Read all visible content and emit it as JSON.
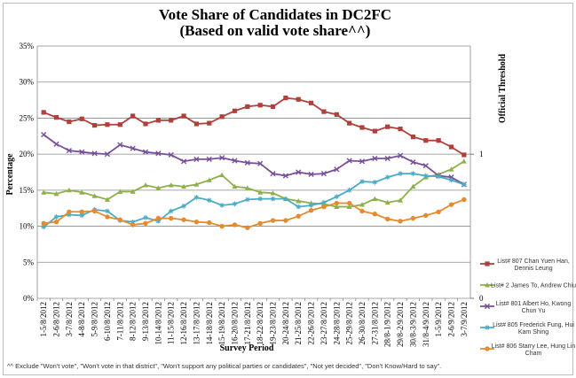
{
  "chart_data": {
    "type": "line",
    "title": "Vote Share of Candidates in DC2FC",
    "subtitle": "(Based on valid vote share^^)",
    "xlabel": "Survey Period",
    "ylabel": "Percentage",
    "y2label": "Official Threshold",
    "ylim": [
      0,
      35
    ],
    "yticks": [
      "0%",
      "5%",
      "10%",
      "15%",
      "20%",
      "25%",
      "30%",
      "35%"
    ],
    "y2ticks": [
      "0",
      "1"
    ],
    "grid": true,
    "legend_position": "right",
    "categories": [
      "1-5/8/2012",
      "2-6/8/2012",
      "3-7/8/2012",
      "4-8/8/2012",
      "5-9/8/2012",
      "6-10/8/2012",
      "7-11/8/2012",
      "8-12/8/2012",
      "9-13/8/2012",
      "10-14/8/2012",
      "11-15/8/2012",
      "12-16/8/2012",
      "13-17/8/2012",
      "14-18/8/2012",
      "15-19/8/2012",
      "16-20/8/2012",
      "17-21/8/2012",
      "18-22/8/2012",
      "19-23/8/2012",
      "20-24/8/2012",
      "21-25/8/2012",
      "22-26/8/2012",
      "23-27/8/2012",
      "24-28/8/2012",
      "25-29/8/2012",
      "26-30/8/2012",
      "27-31/8/2012",
      "28/8-1/9/2012",
      "29/8-2/9/2012",
      "30/8-3/9/2012",
      "31/8-4/9/2012",
      "1-5/9/2012",
      "2-6/9/2012",
      "3-7/9/2012"
    ],
    "xtick_labels": [
      "1-5/8/2012",
      "2-6/8/2012",
      "3-7/8/2012",
      "4-8/8/2012",
      "5-9/8/2012",
      "6-10/8/2012",
      "7-11/8/2012",
      "8-12/8/2012",
      "9-13/8/2012",
      "10-14/8/2012",
      "11-15/8/2012",
      "12-16/8/2012",
      "13-17/8/2012",
      "14-18/8/2012",
      "15-19/8/2012",
      "16-20/8/2012",
      "17-21/8/2012",
      "18-22/8/2012",
      "19-23/8/2012",
      "20-24/8/2012",
      "21-25/8/2012",
      "22-26/8/2012",
      "23-27/8/2012",
      "24-28/8/2012",
      "25-29/8/2012",
      "26-30/8/2012",
      "27-31/8/2012",
      "28/8-1/9/2012",
      "29/8-2/9/2012",
      "30/8-3/9/2012",
      "31/8-4/9/2012",
      "1-5/9/2012",
      "2-6/9/2012",
      "3-7/9/2012"
    ],
    "series": [
      {
        "name": "List# 807 Chan Yuen Han, Dennis Leung",
        "legend_lines": [
          "List# 807 Chan Yuen Han,",
          "Dennis Leung"
        ],
        "color": "#b0403b",
        "marker": "square",
        "values": [
          25.8,
          25.1,
          24.5,
          24.9,
          24.0,
          24.1,
          24.1,
          25.3,
          24.2,
          24.7,
          24.7,
          25.3,
          24.2,
          24.3,
          25.2,
          26.0,
          26.6,
          26.8,
          26.6,
          27.8,
          27.6,
          27.1,
          25.9,
          25.5,
          24.3,
          23.7,
          23.2,
          23.8,
          23.5,
          22.4,
          21.9,
          21.9,
          21.0,
          19.9
        ]
      },
      {
        "name": "List# 2 James To, Andrew Chiu",
        "legend_lines": [
          "List# 2 James To, Andrew Chiu"
        ],
        "color": "#8db04b",
        "marker": "triangle",
        "values": [
          14.7,
          14.5,
          15.0,
          14.7,
          14.2,
          13.7,
          14.8,
          14.8,
          15.7,
          15.3,
          15.7,
          15.5,
          15.8,
          16.4,
          17.1,
          15.5,
          15.3,
          14.7,
          14.6,
          13.8,
          13.5,
          13.2,
          13.1,
          12.7,
          12.7,
          13.0,
          13.8,
          13.3,
          13.6,
          15.5,
          16.8,
          17.2,
          17.9,
          19.0
        ]
      },
      {
        "name": "List# 801 Albert Ho, Kwong Chun Yu",
        "legend_lines": [
          "List# 801 Albert Ho, Kwong",
          "Chun Yu"
        ],
        "color": "#7a4f9a",
        "marker": "x",
        "values": [
          22.7,
          21.4,
          20.5,
          20.3,
          20.1,
          20.0,
          21.3,
          20.8,
          20.3,
          20.1,
          19.9,
          19.0,
          19.3,
          19.3,
          19.5,
          19.1,
          18.8,
          18.7,
          17.3,
          17.0,
          17.5,
          17.2,
          17.3,
          17.9,
          19.1,
          19.0,
          19.4,
          19.4,
          19.8,
          18.9,
          18.4,
          17.0,
          16.8,
          15.8
        ]
      },
      {
        "name": "List# 805 Frederick Fung, Hui Kam Shing",
        "legend_lines": [
          "List# 805 Frederick Fung, Hui",
          "Kam Shing"
        ],
        "color": "#4bacc6",
        "marker": "star",
        "values": [
          9.9,
          11.3,
          11.6,
          11.5,
          12.3,
          12.1,
          10.8,
          10.6,
          11.2,
          10.7,
          12.1,
          12.8,
          14.0,
          13.6,
          12.9,
          13.1,
          13.7,
          13.8,
          13.8,
          13.8,
          12.7,
          12.9,
          13.3,
          14.1,
          15.0,
          16.2,
          16.1,
          16.8,
          17.3,
          17.3,
          17.0,
          16.9,
          16.4,
          15.8
        ]
      },
      {
        "name": "List# 806 Starry Lee, Hung Lin Cham",
        "legend_lines": [
          "List# 806 Starry Lee, Hung Lin",
          "Cham"
        ],
        "color": "#e68a2e",
        "marker": "circle",
        "values": [
          10.4,
          10.6,
          12.0,
          12.0,
          12.1,
          11.3,
          10.9,
          10.2,
          10.4,
          11.1,
          11.1,
          10.9,
          10.6,
          10.5,
          10.0,
          10.2,
          9.8,
          10.4,
          10.8,
          10.8,
          11.4,
          12.2,
          12.7,
          13.2,
          13.2,
          12.1,
          11.7,
          11.0,
          10.7,
          11.1,
          11.5,
          12.0,
          13.0,
          13.7
        ]
      }
    ]
  },
  "footnote": "^^ Exclude \"Won't vote\", \"Won't vote in that district\", \"Won't support any political parties or candidates\", \"Not yet decided\", \"Don't Know/Hard to say\"."
}
